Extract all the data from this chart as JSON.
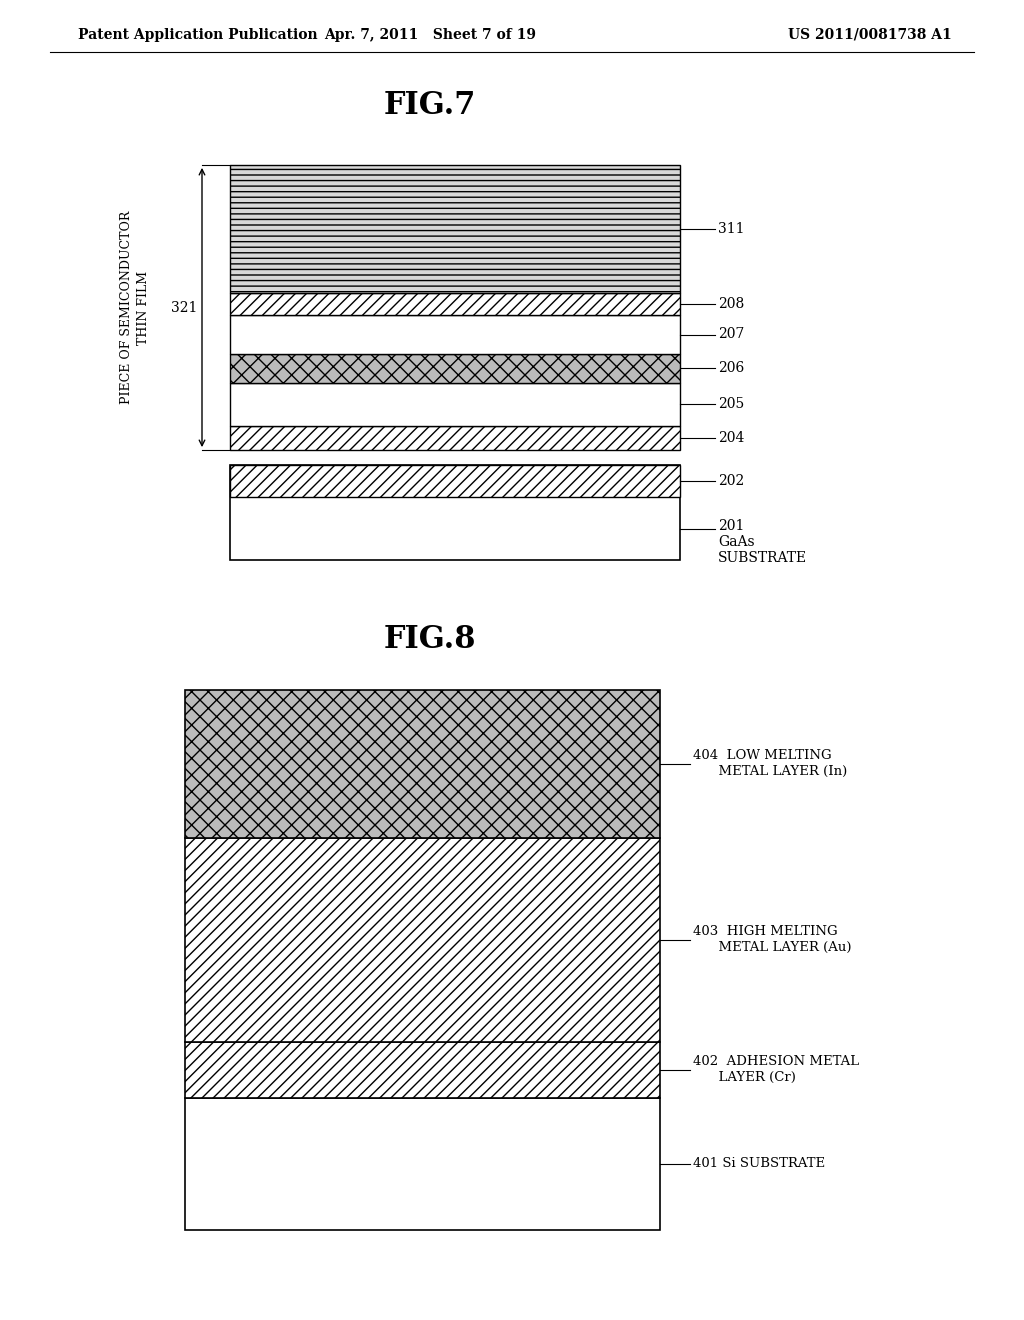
{
  "header_left": "Patent Application Publication",
  "header_mid": "Apr. 7, 2011   Sheet 7 of 19",
  "header_right": "US 2011/0081738 A1",
  "fig7_title": "FIG.7",
  "fig8_title": "FIG.8",
  "bg_color": "#ffffff"
}
